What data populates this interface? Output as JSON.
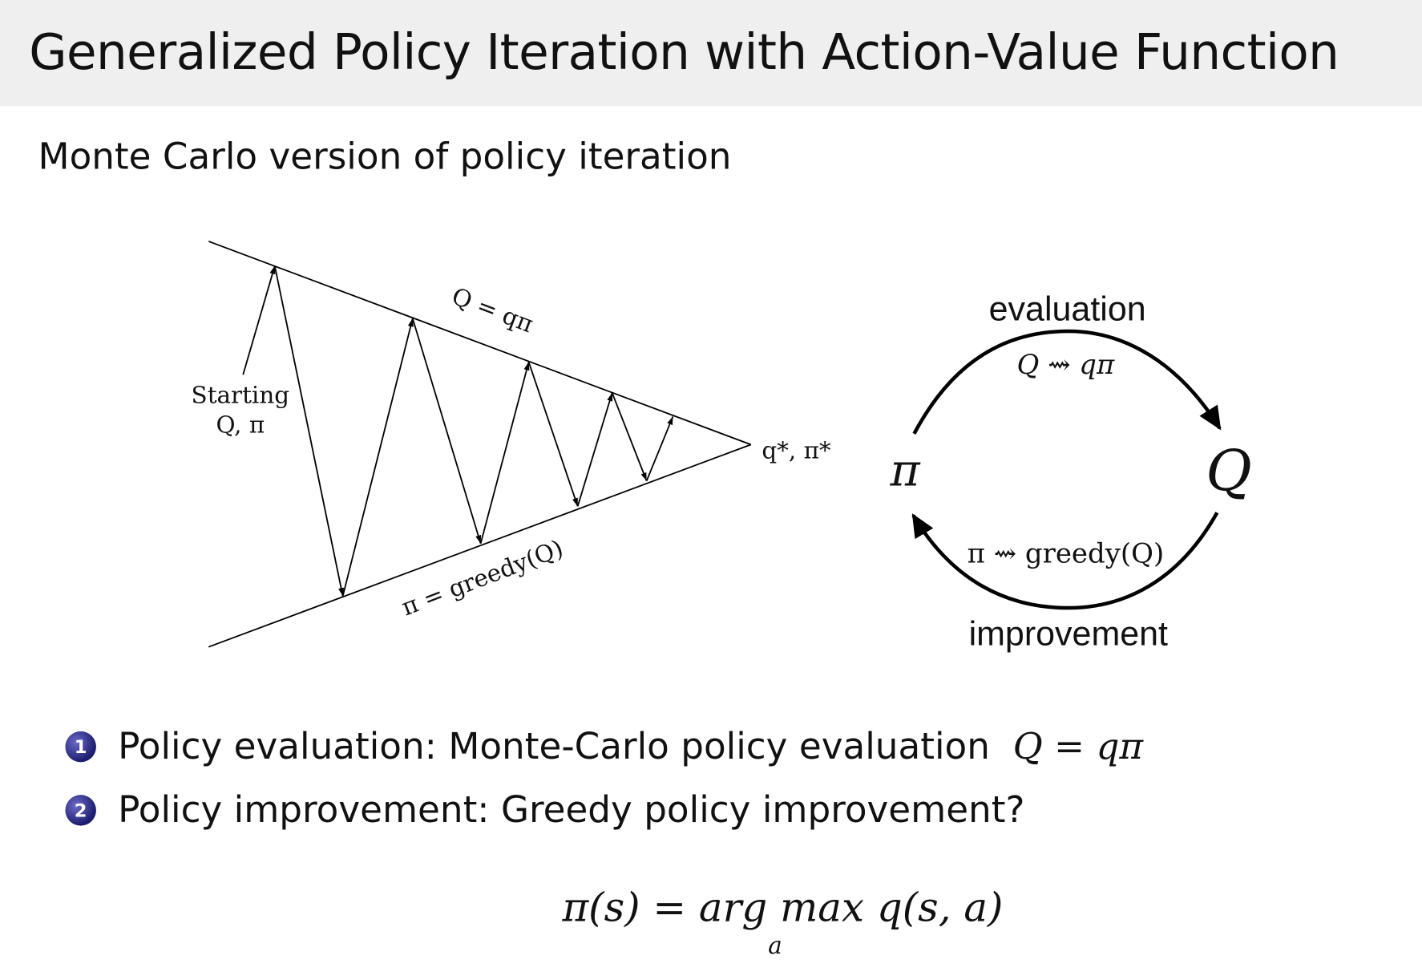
{
  "header": {
    "title": "Generalized Policy Iteration with Action-Value Function"
  },
  "subtitle": "Monte Carlo version of policy iteration",
  "left_diagram": {
    "start_label_line1": "Starting",
    "start_label_line2": "Q, π",
    "upper_line_label": "Q = qπ",
    "lower_line_label": "π = greedy(Q)",
    "convergence_label": "q*, π*"
  },
  "right_diagram": {
    "top_label": "evaluation",
    "top_formula": "Q ⇝ qπ",
    "left_node": "π",
    "right_node": "Q",
    "bottom_formula": "π ⇝ greedy(Q)",
    "bottom_label": "improvement"
  },
  "bullets": [
    {
      "number": "1",
      "text": "Policy evaluation: Monte-Carlo policy evaluation",
      "math": "Q = qπ"
    },
    {
      "number": "2",
      "text": "Policy improvement: Greedy policy improvement?"
    }
  ],
  "formula": {
    "main": "π(s) = arg max q(s, a)",
    "subscript": "a"
  }
}
